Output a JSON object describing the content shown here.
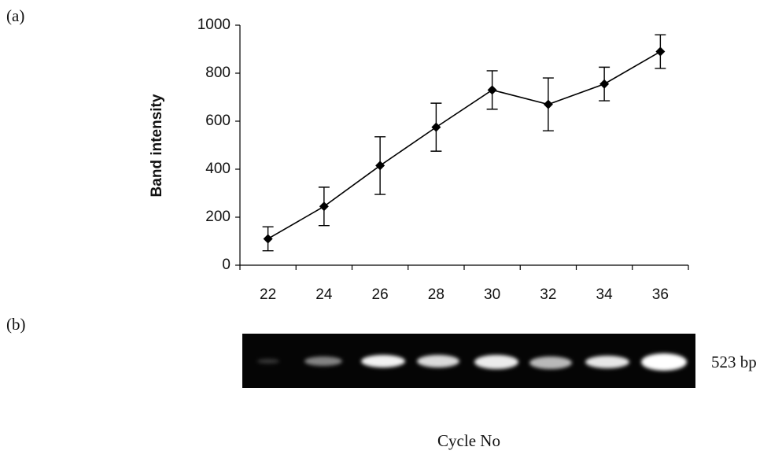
{
  "panel_labels": [
    "(a)",
    "(b)"
  ],
  "chart_data": {
    "type": "line",
    "y_label": "Band intensity",
    "x_label": "Cycle No",
    "categories": [
      "22",
      "24",
      "26",
      "28",
      "30",
      "32",
      "34",
      "36"
    ],
    "series": [
      {
        "color": "#000000",
        "values": [
          110,
          245,
          415,
          575,
          730,
          670,
          755,
          890
        ],
        "errors": [
          50,
          80,
          120,
          100,
          80,
          110,
          70,
          70
        ]
      }
    ],
    "ylim": [
      0,
      1000
    ],
    "yticks": [
      0,
      200,
      400,
      600,
      800,
      1000
    ],
    "grid": false
  },
  "gel": {
    "band_label": "523 bp"
  }
}
